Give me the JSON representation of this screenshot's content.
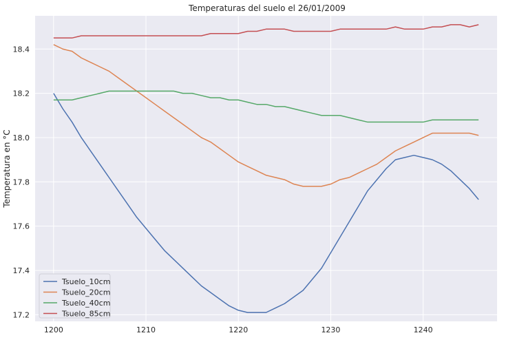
{
  "chart_data": {
    "type": "line",
    "title": "Temperaturas del suelo el 26/01/2009",
    "xlabel": "",
    "ylabel": "Temperatura en °C",
    "xlim": [
      1198,
      1248
    ],
    "ylim": [
      17.17,
      18.55
    ],
    "xticks": [
      1200,
      1210,
      1220,
      1230,
      1240
    ],
    "yticks": [
      17.2,
      17.4,
      17.6,
      17.8,
      18.0,
      18.2,
      18.4
    ],
    "grid": true,
    "legend_position": "lower-left",
    "x": [
      1200,
      1201,
      1202,
      1203,
      1204,
      1205,
      1206,
      1207,
      1208,
      1209,
      1210,
      1211,
      1212,
      1213,
      1214,
      1215,
      1216,
      1217,
      1218,
      1219,
      1220,
      1221,
      1222,
      1223,
      1224,
      1225,
      1226,
      1227,
      1228,
      1229,
      1230,
      1231,
      1232,
      1233,
      1234,
      1235,
      1236,
      1237,
      1238,
      1239,
      1240,
      1241,
      1242,
      1243,
      1244,
      1245,
      1246
    ],
    "series": [
      {
        "name": "Tsuelo_10cm",
        "color": "#4c72b0",
        "values": [
          18.2,
          18.13,
          18.07,
          18.0,
          17.94,
          17.88,
          17.82,
          17.76,
          17.7,
          17.64,
          17.59,
          17.54,
          17.49,
          17.45,
          17.41,
          17.37,
          17.33,
          17.3,
          17.27,
          17.24,
          17.22,
          17.21,
          17.21,
          17.21,
          17.23,
          17.25,
          17.28,
          17.31,
          17.36,
          17.41,
          17.48,
          17.55,
          17.62,
          17.69,
          17.76,
          17.81,
          17.86,
          17.9,
          17.91,
          17.92,
          17.91,
          17.9,
          17.88,
          17.85,
          17.81,
          17.77,
          17.72
        ]
      },
      {
        "name": "Tsuelo_20cm",
        "color": "#dd8452",
        "values": [
          18.42,
          18.4,
          18.39,
          18.36,
          18.34,
          18.32,
          18.3,
          18.27,
          18.24,
          18.21,
          18.18,
          18.15,
          18.12,
          18.09,
          18.06,
          18.03,
          18.0,
          17.98,
          17.95,
          17.92,
          17.89,
          17.87,
          17.85,
          17.83,
          17.82,
          17.81,
          17.79,
          17.78,
          17.78,
          17.78,
          17.79,
          17.81,
          17.82,
          17.84,
          17.86,
          17.88,
          17.91,
          17.94,
          17.96,
          17.98,
          18.0,
          18.02,
          18.02,
          18.02,
          18.02,
          18.02,
          18.01
        ]
      },
      {
        "name": "Tsuelo_40cm",
        "color": "#55a868",
        "values": [
          18.17,
          18.17,
          18.17,
          18.18,
          18.19,
          18.2,
          18.21,
          18.21,
          18.21,
          18.21,
          18.21,
          18.21,
          18.21,
          18.21,
          18.2,
          18.2,
          18.19,
          18.18,
          18.18,
          18.17,
          18.17,
          18.16,
          18.15,
          18.15,
          18.14,
          18.14,
          18.13,
          18.12,
          18.11,
          18.1,
          18.1,
          18.1,
          18.09,
          18.08,
          18.07,
          18.07,
          18.07,
          18.07,
          18.07,
          18.07,
          18.07,
          18.08,
          18.08,
          18.08,
          18.08,
          18.08,
          18.08
        ]
      },
      {
        "name": "Tsuelo_85cm",
        "color": "#c44e52",
        "values": [
          18.45,
          18.45,
          18.45,
          18.46,
          18.46,
          18.46,
          18.46,
          18.46,
          18.46,
          18.46,
          18.46,
          18.46,
          18.46,
          18.46,
          18.46,
          18.46,
          18.46,
          18.47,
          18.47,
          18.47,
          18.47,
          18.48,
          18.48,
          18.49,
          18.49,
          18.49,
          18.48,
          18.48,
          18.48,
          18.48,
          18.48,
          18.49,
          18.49,
          18.49,
          18.49,
          18.49,
          18.49,
          18.5,
          18.49,
          18.49,
          18.49,
          18.5,
          18.5,
          18.51,
          18.51,
          18.5,
          18.51
        ]
      }
    ]
  }
}
